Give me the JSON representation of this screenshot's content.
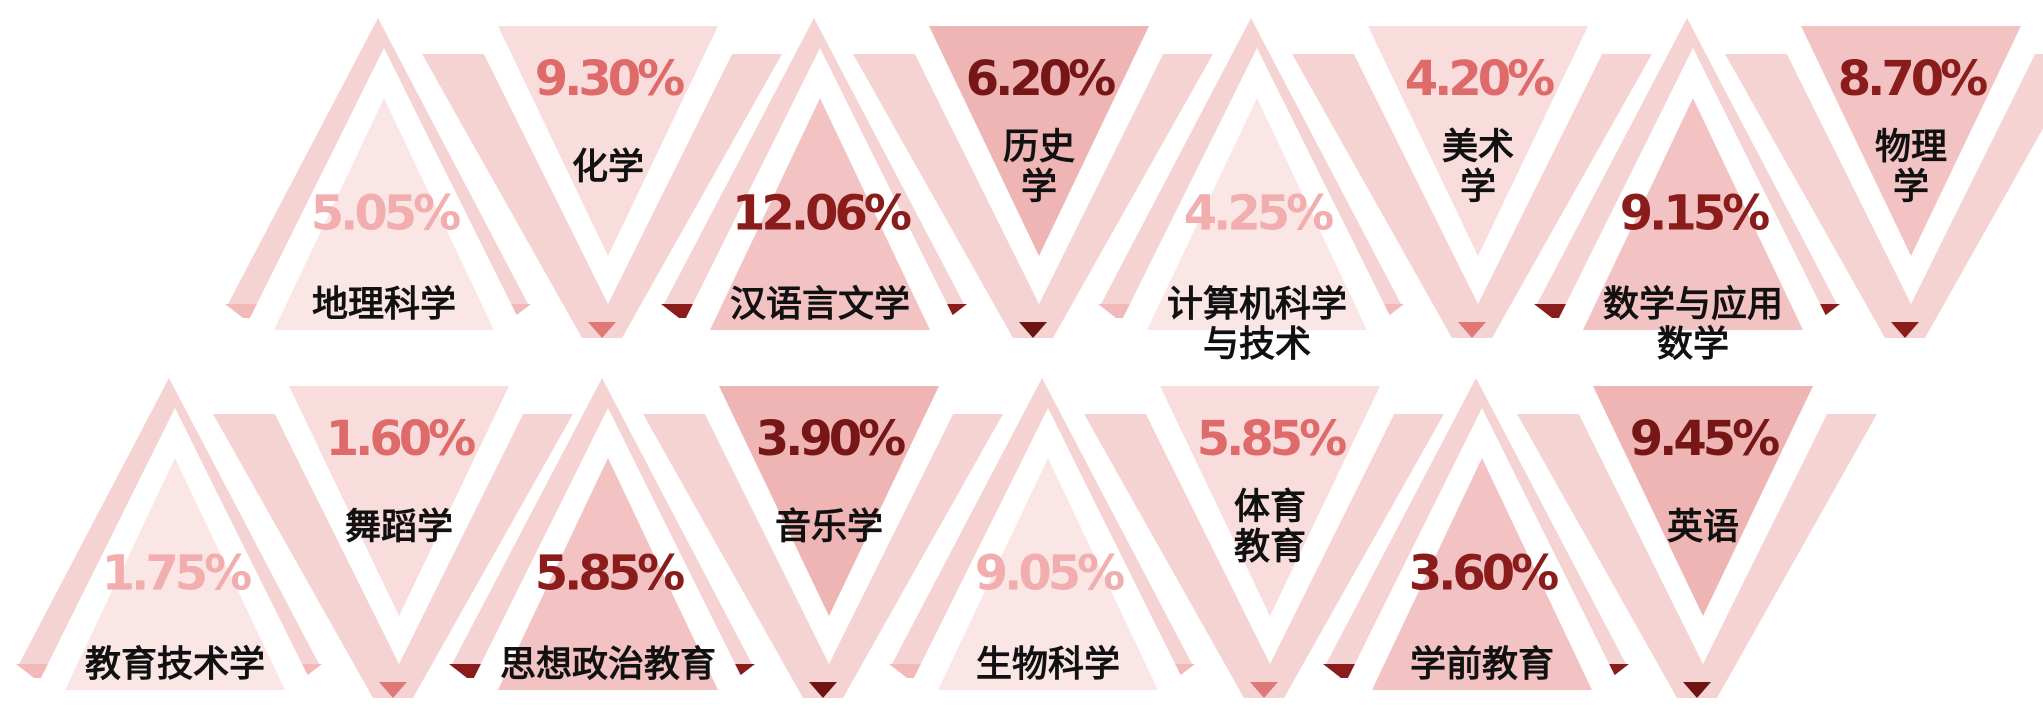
{
  "items": [
    {
      "value": "5.05%",
      "label": [
        "地理科学"
      ]
    },
    {
      "value": "9.30%",
      "label": [
        "化学"
      ]
    },
    {
      "value": "12.06%",
      "label": [
        "汉语言文学"
      ]
    },
    {
      "value": "6.20%",
      "label": [
        "历史",
        "学"
      ]
    },
    {
      "value": "4.25%",
      "label": [
        "计算机科学",
        "与技术"
      ]
    },
    {
      "value": "4.20%",
      "label": [
        "美术",
        "学"
      ]
    },
    {
      "value": "9.15%",
      "label": [
        "数学与应用",
        "数学"
      ]
    },
    {
      "value": "8.70%",
      "label": [
        "物理",
        "学"
      ]
    },
    {
      "value": "1.75%",
      "label": [
        "教育技术学"
      ]
    },
    {
      "value": "1.60%",
      "label": [
        "舞蹈学"
      ]
    },
    {
      "value": "5.85%",
      "label": [
        "思想政治教育"
      ]
    },
    {
      "value": "3.90%",
      "label": [
        "音乐学"
      ]
    },
    {
      "value": "9.05%",
      "label": [
        "生物科学"
      ]
    },
    {
      "value": "5.85%",
      "label": [
        "体育",
        "教育"
      ]
    },
    {
      "value": "3.60%",
      "label": [
        "学前教育"
      ]
    },
    {
      "value": "9.45%",
      "label": [
        "英语"
      ]
    }
  ]
}
